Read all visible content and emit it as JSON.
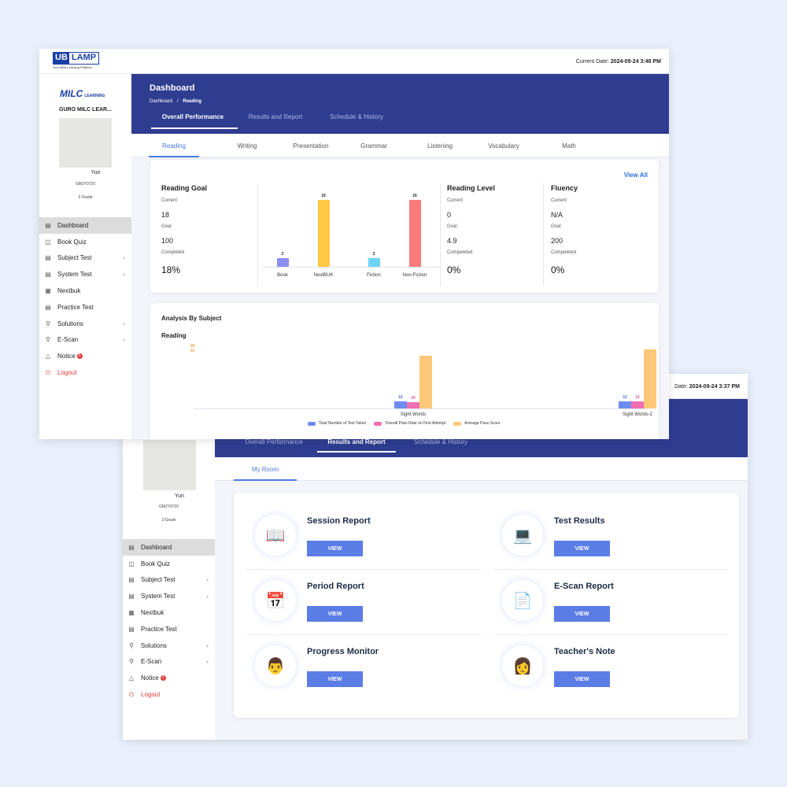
{
  "front": {
    "logo": {
      "brand_a": "UB",
      "brand_b": "LAMP",
      "tagline": "Your Best Learning Platform"
    },
    "current_date_label": "Current Date:",
    "current_date": "2024-09-24 3:48 PM",
    "school_logo": "MILC",
    "school_logo_sub": "LEARNING",
    "school_name": "GURO MILC LEAR...",
    "user": {
      "name": "Yun",
      "id": "GMJY0720",
      "grade": "3 Grade"
    },
    "menu": [
      "Dashboard",
      "Book Quiz",
      "Subject Test",
      "System Test",
      "Nextbuk",
      "Practice Test",
      "Solutions",
      "E-Scan",
      "Notice",
      "Logout"
    ],
    "notice_badge": "5",
    "header": {
      "title": "Dashboard",
      "crumb_root": "Dashboard",
      "crumb_sep": "/",
      "crumb_current": "Reading"
    },
    "tabs": [
      "Overall Performance",
      "Results and Report",
      "Schedule & History"
    ],
    "subtabs": [
      "Reading",
      "Writing",
      "Presentation",
      "Grammar",
      "Listening",
      "Vocabulary",
      "Math"
    ],
    "view_all": "View All",
    "reading_goal": {
      "title": "Reading Goal",
      "current_label": "Current",
      "current": "18",
      "goal_label": "Goal",
      "goal": "100",
      "completed_label": "Completed",
      "completed": "18%"
    },
    "goal_chart": {
      "categories": [
        "Book",
        "NextBUK",
        "Fiction",
        "Non-Fiction"
      ],
      "values": [
        2,
        16,
        2,
        16
      ],
      "colors": [
        "#8b8ff0",
        "#ffc845",
        "#6fd3f5",
        "#f97b7b"
      ]
    },
    "reading_level": {
      "title": "Reading Level",
      "current_label": "Current",
      "current": "0",
      "goal_label": "Goal",
      "goal": "4.9",
      "completed_label": "Compeleted",
      "completed": "0%"
    },
    "fluency": {
      "title": "Fluency",
      "current_label": "Current",
      "current": "N/A",
      "goal_label": "Goal",
      "goal": "200",
      "completed_label": "Compeleted",
      "completed": "0%"
    },
    "analysis": {
      "title": "Analysis By Subject",
      "subject": "Reading",
      "y_ticks": [
        "90",
        "81"
      ]
    }
  },
  "chart_data": {
    "type": "bar",
    "categories": [
      "Sight Words",
      "Sight Words-2"
    ],
    "series": [
      {
        "name": "Total Number of Test Taken",
        "values": [
          11,
          11
        ],
        "color": "#6d8cf0"
      },
      {
        "name": "Overall Pass Rate on First Attempt",
        "values": [
          10,
          11
        ],
        "color": "#ef6fb3"
      },
      {
        "name": "Average Pass Score",
        "values": [
          81,
          90
        ],
        "color": "#ffc878"
      }
    ],
    "legend": "bottom"
  },
  "back": {
    "current_date_label": "Date:",
    "current_date": "2024-09-24 3:37 PM",
    "user": {
      "name": "Yun",
      "id": "GMJY0720",
      "grade": "3 Grade"
    },
    "menu": [
      "Dashboard",
      "Book Quiz",
      "Subject Test",
      "System Test",
      "Nextbuk",
      "Practice Test",
      "Solutions",
      "E-Scan",
      "Notice",
      "Logout"
    ],
    "notice_badge": "3",
    "tabs": [
      "Overall Performance",
      "Results and Report",
      "Schedule & History"
    ],
    "subtab": "My Room",
    "reports": [
      {
        "title": "Session Report",
        "button": "VIEW",
        "icon": "session-report-icon"
      },
      {
        "title": "Test Results",
        "button": "VIEW",
        "icon": "test-results-icon"
      },
      {
        "title": "Period Report",
        "button": "VIEW",
        "icon": "period-report-icon"
      },
      {
        "title": "E-Scan Report",
        "button": "VIEW",
        "icon": "escan-report-icon"
      },
      {
        "title": "Progress Monitor",
        "button": "VIEW",
        "icon": "progress-monitor-icon"
      },
      {
        "title": "Teacher's Note",
        "button": "VIEW",
        "icon": "teachers-note-icon"
      }
    ]
  }
}
